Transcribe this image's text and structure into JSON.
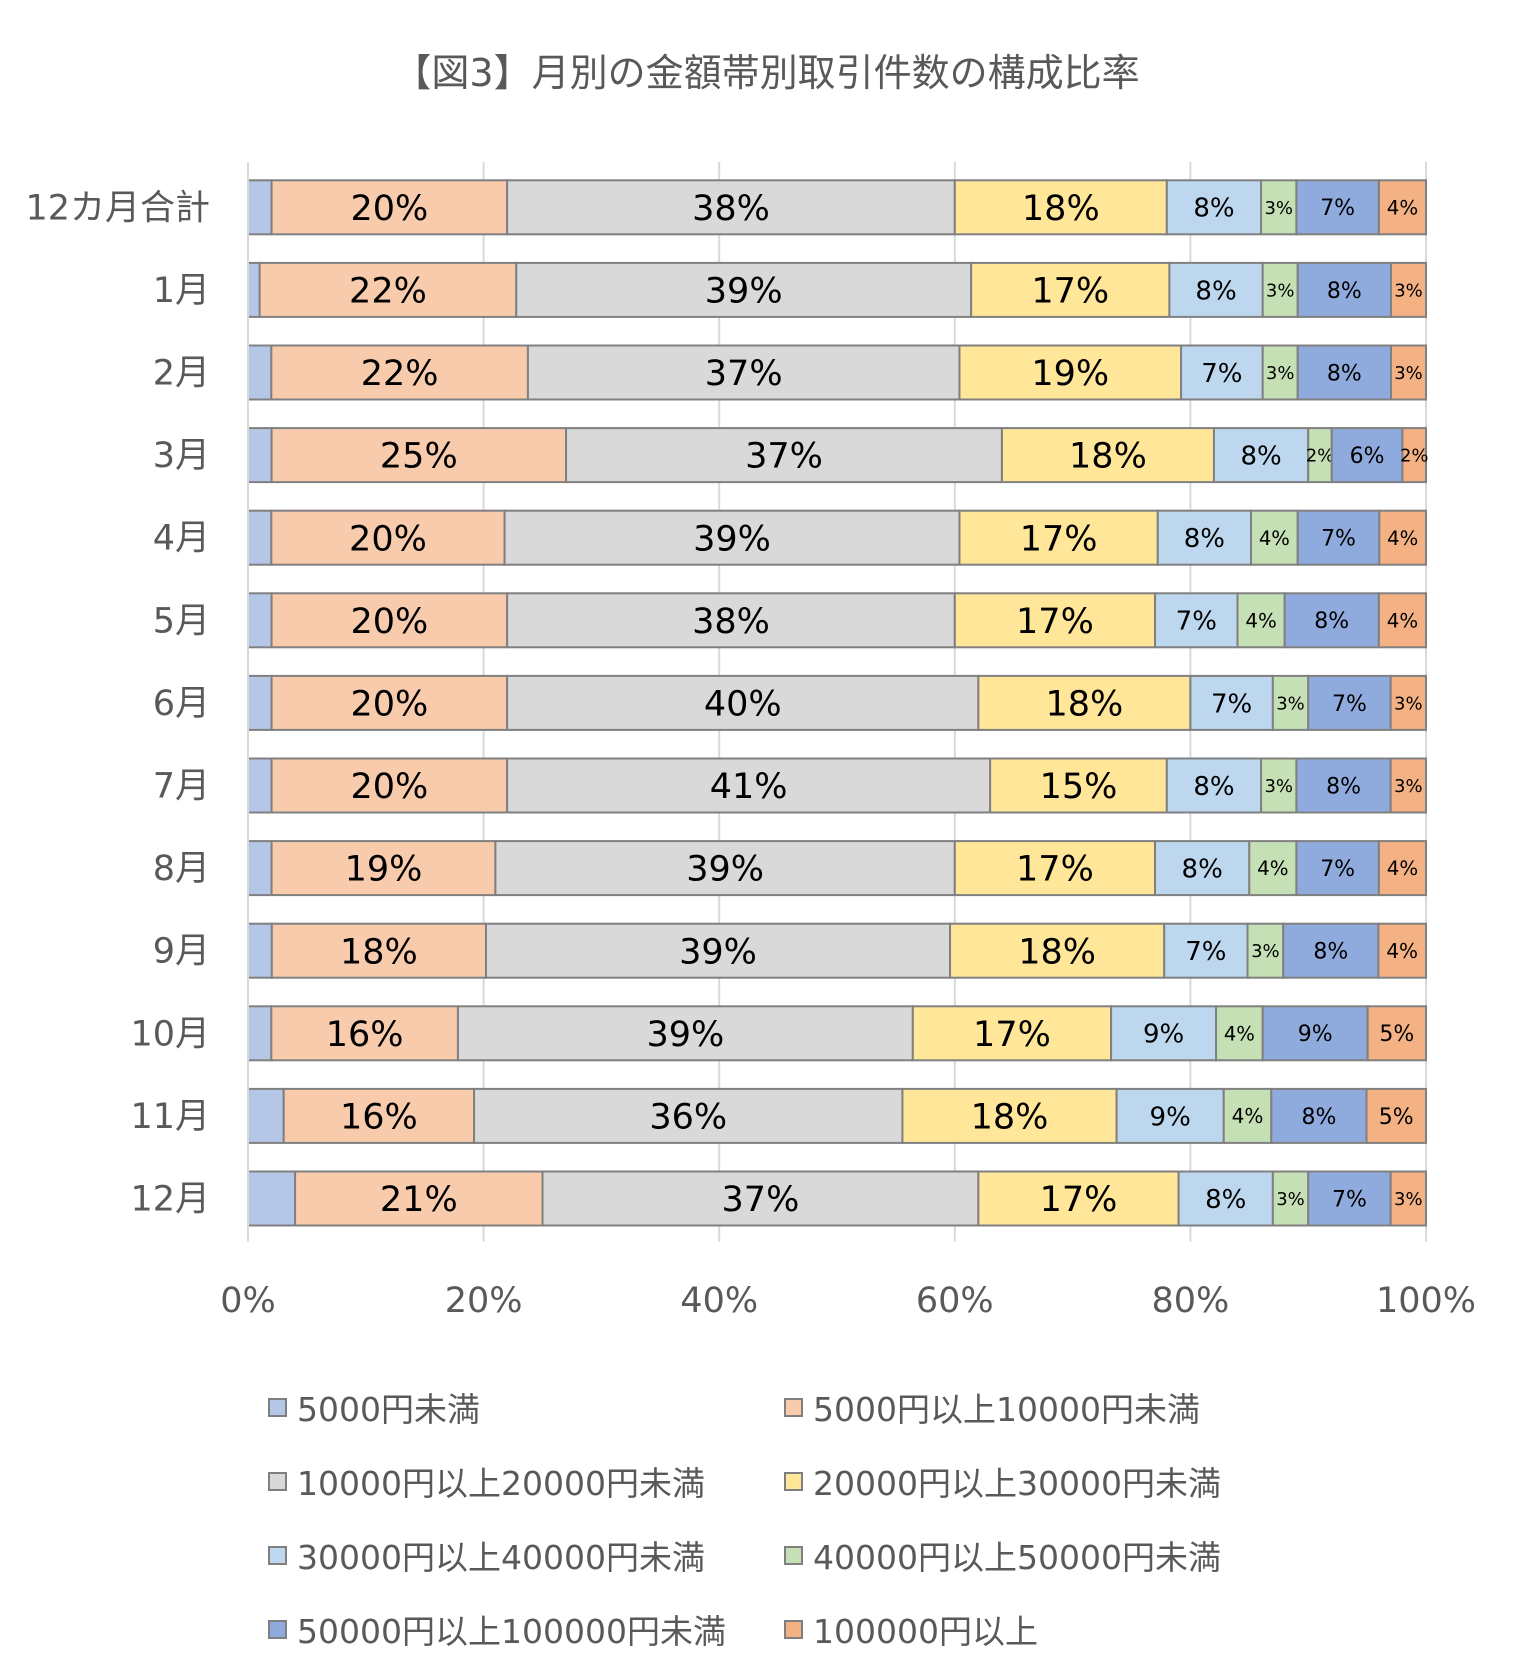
{
  "chart_data": {
    "type": "bar",
    "orientation": "horizontal",
    "stacked": "percent",
    "title": "【図3】月別の金額帯別取引件数の構成比率",
    "categories": [
      "12カ月合計",
      "1月",
      "2月",
      "3月",
      "4月",
      "5月",
      "6月",
      "7月",
      "8月",
      "9月",
      "10月",
      "11月",
      "12月"
    ],
    "series": [
      {
        "name": "5000円未満",
        "color": "#b4c7e7",
        "values": [
          2,
          1,
          2,
          2,
          2,
          2,
          2,
          2,
          2,
          2,
          2,
          3,
          4
        ]
      },
      {
        "name": "5000円以上10000円未満",
        "color": "#f8cbad",
        "values": [
          20,
          22,
          22,
          25,
          20,
          20,
          20,
          20,
          19,
          18,
          16,
          16,
          21
        ]
      },
      {
        "name": "10000円以上20000円未満",
        "color": "#d9d9d9",
        "values": [
          38,
          39,
          37,
          37,
          39,
          38,
          40,
          41,
          39,
          39,
          39,
          36,
          37
        ]
      },
      {
        "name": "20000円以上30000円未満",
        "color": "#ffe699",
        "values": [
          18,
          17,
          19,
          18,
          17,
          17,
          18,
          15,
          17,
          18,
          17,
          18,
          17
        ]
      },
      {
        "name": "30000円以上40000円未満",
        "color": "#bdd7ee",
        "values": [
          8,
          8,
          7,
          8,
          8,
          7,
          7,
          8,
          8,
          7,
          9,
          9,
          8
        ]
      },
      {
        "name": "40000円以上50000円未満",
        "color": "#c5e0b4",
        "values": [
          3,
          3,
          3,
          2,
          4,
          4,
          3,
          3,
          4,
          3,
          4,
          4,
          3
        ]
      },
      {
        "name": "50000円以上100000円未満",
        "color": "#8faadc",
        "values": [
          7,
          8,
          8,
          6,
          7,
          8,
          7,
          8,
          7,
          8,
          9,
          8,
          7
        ]
      },
      {
        "name": "100000円以上",
        "color": "#f4b183",
        "values": [
          4,
          3,
          3,
          2,
          4,
          4,
          3,
          3,
          4,
          4,
          5,
          5,
          3
        ]
      }
    ],
    "xaxis": {
      "ticks": [
        "0%",
        "20%",
        "40%",
        "60%",
        "80%",
        "100%"
      ],
      "range": [
        0,
        100
      ]
    },
    "grid": true,
    "legend_position": "bottom"
  }
}
